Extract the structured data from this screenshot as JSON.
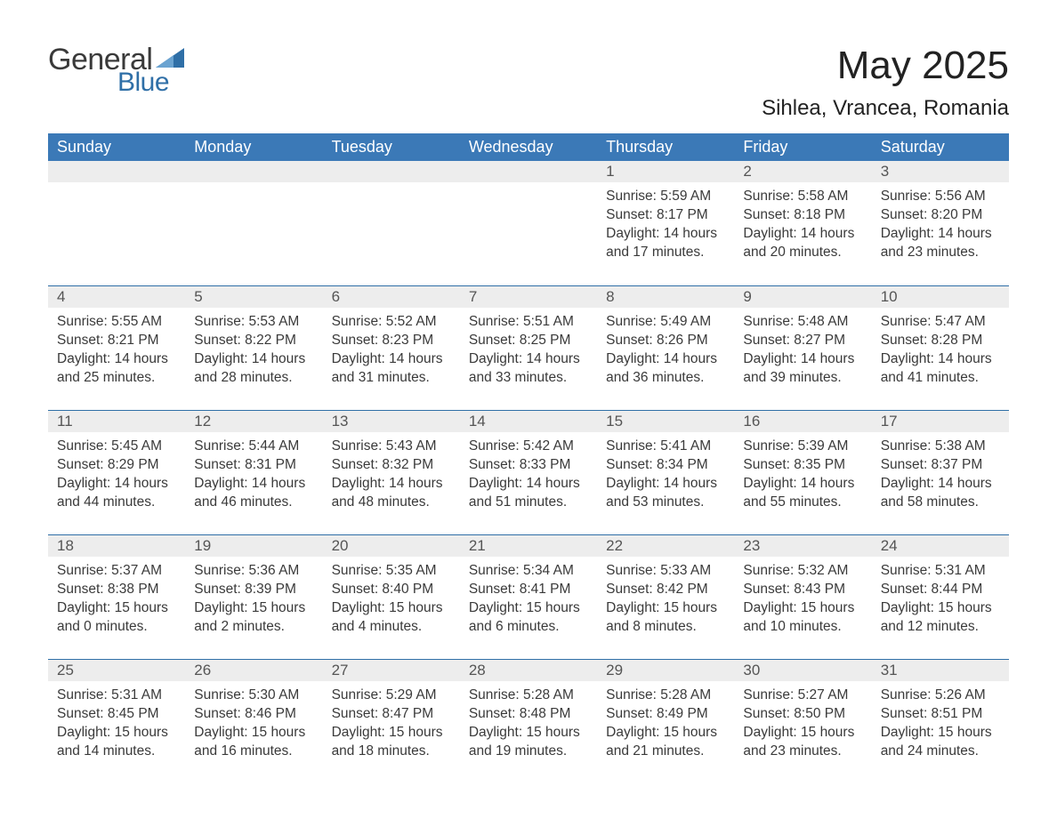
{
  "logo": {
    "text_general": "General",
    "text_blue": "Blue",
    "accent_color": "#2f6fa7",
    "text_color": "#3a3a3a"
  },
  "title": "May 2025",
  "location": "Sihlea, Vrancea, Romania",
  "colors": {
    "header_bg": "#3b79b7",
    "header_text": "#ffffff",
    "daynum_bg": "#ededed",
    "daynum_text": "#555555",
    "row_divider": "#2f6fa7",
    "body_text": "#3a3a3a",
    "page_bg": "#ffffff"
  },
  "weekdays": [
    "Sunday",
    "Monday",
    "Tuesday",
    "Wednesday",
    "Thursday",
    "Friday",
    "Saturday"
  ],
  "weeks": [
    [
      null,
      null,
      null,
      null,
      {
        "n": "1",
        "sunrise": "Sunrise: 5:59 AM",
        "sunset": "Sunset: 8:17 PM",
        "daylight": "Daylight: 14 hours and 17 minutes."
      },
      {
        "n": "2",
        "sunrise": "Sunrise: 5:58 AM",
        "sunset": "Sunset: 8:18 PM",
        "daylight": "Daylight: 14 hours and 20 minutes."
      },
      {
        "n": "3",
        "sunrise": "Sunrise: 5:56 AM",
        "sunset": "Sunset: 8:20 PM",
        "daylight": "Daylight: 14 hours and 23 minutes."
      }
    ],
    [
      {
        "n": "4",
        "sunrise": "Sunrise: 5:55 AM",
        "sunset": "Sunset: 8:21 PM",
        "daylight": "Daylight: 14 hours and 25 minutes."
      },
      {
        "n": "5",
        "sunrise": "Sunrise: 5:53 AM",
        "sunset": "Sunset: 8:22 PM",
        "daylight": "Daylight: 14 hours and 28 minutes."
      },
      {
        "n": "6",
        "sunrise": "Sunrise: 5:52 AM",
        "sunset": "Sunset: 8:23 PM",
        "daylight": "Daylight: 14 hours and 31 minutes."
      },
      {
        "n": "7",
        "sunrise": "Sunrise: 5:51 AM",
        "sunset": "Sunset: 8:25 PM",
        "daylight": "Daylight: 14 hours and 33 minutes."
      },
      {
        "n": "8",
        "sunrise": "Sunrise: 5:49 AM",
        "sunset": "Sunset: 8:26 PM",
        "daylight": "Daylight: 14 hours and 36 minutes."
      },
      {
        "n": "9",
        "sunrise": "Sunrise: 5:48 AM",
        "sunset": "Sunset: 8:27 PM",
        "daylight": "Daylight: 14 hours and 39 minutes."
      },
      {
        "n": "10",
        "sunrise": "Sunrise: 5:47 AM",
        "sunset": "Sunset: 8:28 PM",
        "daylight": "Daylight: 14 hours and 41 minutes."
      }
    ],
    [
      {
        "n": "11",
        "sunrise": "Sunrise: 5:45 AM",
        "sunset": "Sunset: 8:29 PM",
        "daylight": "Daylight: 14 hours and 44 minutes."
      },
      {
        "n": "12",
        "sunrise": "Sunrise: 5:44 AM",
        "sunset": "Sunset: 8:31 PM",
        "daylight": "Daylight: 14 hours and 46 minutes."
      },
      {
        "n": "13",
        "sunrise": "Sunrise: 5:43 AM",
        "sunset": "Sunset: 8:32 PM",
        "daylight": "Daylight: 14 hours and 48 minutes."
      },
      {
        "n": "14",
        "sunrise": "Sunrise: 5:42 AM",
        "sunset": "Sunset: 8:33 PM",
        "daylight": "Daylight: 14 hours and 51 minutes."
      },
      {
        "n": "15",
        "sunrise": "Sunrise: 5:41 AM",
        "sunset": "Sunset: 8:34 PM",
        "daylight": "Daylight: 14 hours and 53 minutes."
      },
      {
        "n": "16",
        "sunrise": "Sunrise: 5:39 AM",
        "sunset": "Sunset: 8:35 PM",
        "daylight": "Daylight: 14 hours and 55 minutes."
      },
      {
        "n": "17",
        "sunrise": "Sunrise: 5:38 AM",
        "sunset": "Sunset: 8:37 PM",
        "daylight": "Daylight: 14 hours and 58 minutes."
      }
    ],
    [
      {
        "n": "18",
        "sunrise": "Sunrise: 5:37 AM",
        "sunset": "Sunset: 8:38 PM",
        "daylight": "Daylight: 15 hours and 0 minutes."
      },
      {
        "n": "19",
        "sunrise": "Sunrise: 5:36 AM",
        "sunset": "Sunset: 8:39 PM",
        "daylight": "Daylight: 15 hours and 2 minutes."
      },
      {
        "n": "20",
        "sunrise": "Sunrise: 5:35 AM",
        "sunset": "Sunset: 8:40 PM",
        "daylight": "Daylight: 15 hours and 4 minutes."
      },
      {
        "n": "21",
        "sunrise": "Sunrise: 5:34 AM",
        "sunset": "Sunset: 8:41 PM",
        "daylight": "Daylight: 15 hours and 6 minutes."
      },
      {
        "n": "22",
        "sunrise": "Sunrise: 5:33 AM",
        "sunset": "Sunset: 8:42 PM",
        "daylight": "Daylight: 15 hours and 8 minutes."
      },
      {
        "n": "23",
        "sunrise": "Sunrise: 5:32 AM",
        "sunset": "Sunset: 8:43 PM",
        "daylight": "Daylight: 15 hours and 10 minutes."
      },
      {
        "n": "24",
        "sunrise": "Sunrise: 5:31 AM",
        "sunset": "Sunset: 8:44 PM",
        "daylight": "Daylight: 15 hours and 12 minutes."
      }
    ],
    [
      {
        "n": "25",
        "sunrise": "Sunrise: 5:31 AM",
        "sunset": "Sunset: 8:45 PM",
        "daylight": "Daylight: 15 hours and 14 minutes."
      },
      {
        "n": "26",
        "sunrise": "Sunrise: 5:30 AM",
        "sunset": "Sunset: 8:46 PM",
        "daylight": "Daylight: 15 hours and 16 minutes."
      },
      {
        "n": "27",
        "sunrise": "Sunrise: 5:29 AM",
        "sunset": "Sunset: 8:47 PM",
        "daylight": "Daylight: 15 hours and 18 minutes."
      },
      {
        "n": "28",
        "sunrise": "Sunrise: 5:28 AM",
        "sunset": "Sunset: 8:48 PM",
        "daylight": "Daylight: 15 hours and 19 minutes."
      },
      {
        "n": "29",
        "sunrise": "Sunrise: 5:28 AM",
        "sunset": "Sunset: 8:49 PM",
        "daylight": "Daylight: 15 hours and 21 minutes."
      },
      {
        "n": "30",
        "sunrise": "Sunrise: 5:27 AM",
        "sunset": "Sunset: 8:50 PM",
        "daylight": "Daylight: 15 hours and 23 minutes."
      },
      {
        "n": "31",
        "sunrise": "Sunrise: 5:26 AM",
        "sunset": "Sunset: 8:51 PM",
        "daylight": "Daylight: 15 hours and 24 minutes."
      }
    ]
  ]
}
